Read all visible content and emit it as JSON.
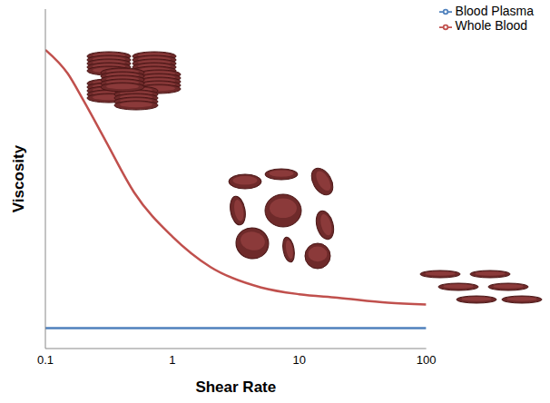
{
  "chart_data": {
    "type": "line",
    "x_label": "Shear Rate",
    "y_label": "Viscosity",
    "x": [
      0.1,
      0.15,
      0.2,
      0.3,
      0.5,
      1,
      2,
      5,
      10,
      20,
      50,
      100
    ],
    "series": [
      {
        "name": "Whole Blood",
        "color": "#c0504d",
        "values": [
          8.8,
          8.1,
          7.3,
          6.1,
          4.6,
          3.3,
          2.4,
          1.8,
          1.6,
          1.5,
          1.35,
          1.3
        ]
      },
      {
        "name": "Blood Plasma",
        "color": "#4f81bd",
        "values": [
          0.6,
          0.6,
          0.6,
          0.6,
          0.6,
          0.6,
          0.6,
          0.6,
          0.6,
          0.6,
          0.6,
          0.6
        ]
      }
    ],
    "xlim": [
      0.1,
      100
    ],
    "xticks": [
      0.1,
      1,
      10,
      100
    ],
    "ylim": [
      0,
      10
    ],
    "log": "x",
    "grid": false,
    "legend": "upper right",
    "tick_labels": "x"
  }
}
